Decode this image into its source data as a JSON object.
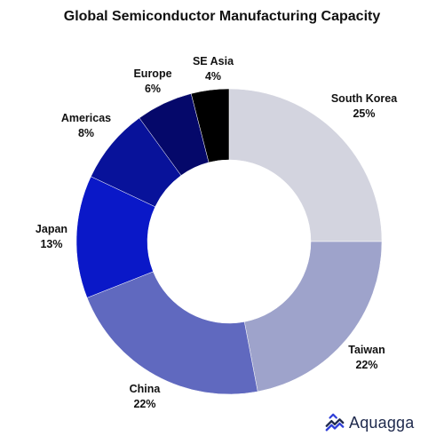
{
  "chart_data": {
    "type": "pie",
    "title": "Global Semiconductor Manufacturing Capacity",
    "donut": true,
    "slices": [
      {
        "label": "South Korea",
        "value": 25,
        "value_label": "25%",
        "color": "#d3d4df"
      },
      {
        "label": "Taiwan",
        "value": 22,
        "value_label": "22%",
        "color": "#9ea3cb"
      },
      {
        "label": "China",
        "value": 22,
        "value_label": "22%",
        "color": "#6069bf"
      },
      {
        "label": "Japan",
        "value": 13,
        "value_label": "13%",
        "color": "#0a18c8"
      },
      {
        "label": "Americas",
        "value": 8,
        "value_label": "8%",
        "color": "#08129a"
      },
      {
        "label": "Europe",
        "value": 6,
        "value_label": "6%",
        "color": "#05086a"
      },
      {
        "label": "SE Asia",
        "value": 4,
        "value_label": "4%",
        "color": "#000000"
      }
    ],
    "start": "top",
    "direction": "clockwise"
  },
  "logo": {
    "text": "Aquagga",
    "icon": "aquagga-logo-icon",
    "color": "#1f2a4d",
    "accent": "#2f3fd8"
  }
}
